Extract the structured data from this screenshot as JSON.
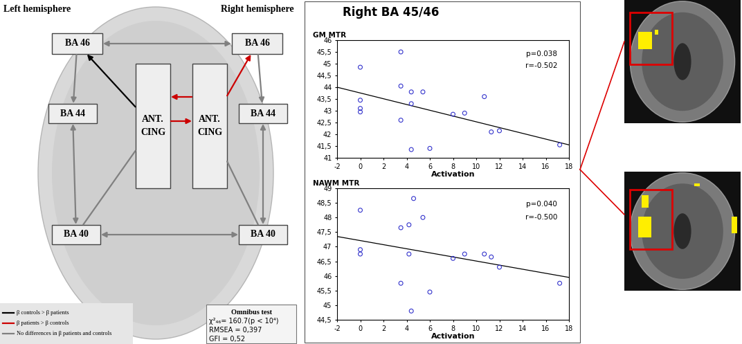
{
  "diagram": {
    "hemispheres": [
      "Left hemisphere",
      "Right hemisphere"
    ],
    "nodes": [
      {
        "label": "BA 46"
      },
      {
        "label": "BA 46"
      },
      {
        "label": "ANT.\nCING"
      },
      {
        "label": "ANT.\nCING"
      },
      {
        "label": "BA 44"
      },
      {
        "label": "BA 44"
      },
      {
        "label": "BA 40"
      },
      {
        "label": "BA 40"
      }
    ],
    "edges": [
      {
        "from": 0,
        "to": 1,
        "color": "#808080",
        "arrow": "both"
      },
      {
        "from": 2,
        "to": 0,
        "color": "#000000",
        "arrow": "end"
      },
      {
        "from": 3,
        "to": 1,
        "color": "#cc0000",
        "arrow": "end"
      },
      {
        "from": 3,
        "to": 2,
        "color": "#cc0000",
        "arrow": "end"
      },
      {
        "from": 2,
        "to": 3,
        "color": "#cc0000",
        "arrow": "end"
      },
      {
        "from": 0,
        "to": 4,
        "color": "#808080",
        "arrow": "end"
      },
      {
        "from": 1,
        "to": 5,
        "color": "#808080",
        "arrow": "end"
      },
      {
        "from": 4,
        "to": 6,
        "color": "#808080",
        "arrow": "both"
      },
      {
        "from": 5,
        "to": 7,
        "color": "#808080",
        "arrow": "both"
      },
      {
        "from": 2,
        "to": 6,
        "color": "#808080",
        "arrow": "none"
      },
      {
        "from": 3,
        "to": 7,
        "color": "#808080",
        "arrow": "none"
      },
      {
        "from": 6,
        "to": 7,
        "color": "#808080",
        "arrow": "both"
      }
    ],
    "legend": [
      {
        "label": "β controls > β patients",
        "color": "#000000"
      },
      {
        "label": "β patients > β controls",
        "color": "#cc0000"
      },
      {
        "label": "No differences in β patients and controls",
        "color": "#808080"
      }
    ],
    "omnibus": [
      "Omnibus test",
      "χ²₄₆= 160.7(p < 10⁴)",
      "RMSEA = 0,397",
      "GFI = 0,52"
    ]
  },
  "scatter_title": "Right BA 45/46",
  "chart_data": [
    {
      "type": "scatter",
      "y_label": "GM MTR",
      "x_label": "Activation",
      "x": [
        0,
        0,
        0,
        0,
        3.5,
        3.5,
        3.5,
        4.4,
        4.4,
        4.4,
        5.4,
        6,
        8,
        9,
        10.7,
        11.3,
        12,
        17.2
      ],
      "values": [
        44.85,
        43.45,
        43.1,
        42.95,
        45.5,
        44.05,
        42.6,
        43.8,
        43.3,
        41.35,
        43.8,
        41.4,
        42.85,
        42.9,
        43.6,
        42.1,
        42.15,
        41.55
      ],
      "color": "#3333cc",
      "marker": "o",
      "fit": {
        "x": [
          -2,
          18
        ],
        "values": [
          44.0,
          41.55
        ]
      },
      "annotations": [
        "p=0.038",
        "r=-0.502"
      ],
      "xlim": [
        -2,
        18
      ],
      "xticks": [
        -2,
        0,
        2,
        4,
        6,
        8,
        10,
        12,
        14,
        16,
        18
      ],
      "ylim": [
        41,
        46
      ],
      "yticks": [
        41,
        {
          "value": 41.5,
          "label": "41,5"
        },
        42,
        {
          "value": 42.5,
          "label": "42,5"
        },
        43,
        {
          "value": 43.5,
          "label": "43,5"
        },
        44,
        {
          "value": 44.5,
          "label": "44,5"
        },
        45,
        {
          "value": 45.5,
          "label": "45,5"
        },
        46
      ]
    },
    {
      "type": "scatter",
      "y_label": "NAWM MTR",
      "x_label": "Activation",
      "x": [
        0,
        0,
        0,
        3.5,
        3.5,
        4.2,
        4.2,
        4.4,
        4.6,
        5.4,
        6,
        8,
        9,
        10.7,
        11.3,
        12,
        17.2
      ],
      "values": [
        48.25,
        46.9,
        46.75,
        47.65,
        45.75,
        47.75,
        46.75,
        44.8,
        48.65,
        48.0,
        45.45,
        46.6,
        46.75,
        46.75,
        46.65,
        46.3,
        45.75
      ],
      "color": "#3333cc",
      "marker": "o",
      "fit": {
        "x": [
          -2,
          18
        ],
        "values": [
          47.35,
          45.95
        ]
      },
      "annotations": [
        "p=0.040",
        "r=-0.500"
      ],
      "xlim": [
        -2,
        18
      ],
      "xticks": [
        -2,
        0,
        2,
        4,
        6,
        8,
        10,
        12,
        14,
        16,
        18
      ],
      "ylim": [
        44.5,
        49
      ],
      "yticks": [
        {
          "value": 44.5,
          "label": "44,5"
        },
        45,
        {
          "value": 45.5,
          "label": "45,5"
        },
        46,
        {
          "value": 46.5,
          "label": "46,5"
        },
        47,
        {
          "value": 47.5,
          "label": "47,5"
        },
        48,
        {
          "value": 48.5,
          "label": "48,5"
        },
        49
      ]
    }
  ]
}
